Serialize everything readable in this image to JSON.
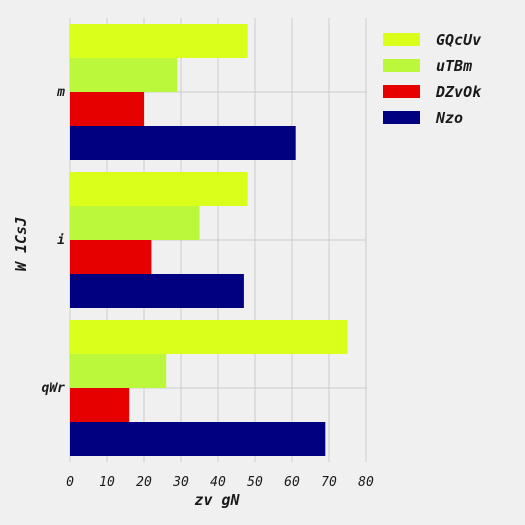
{
  "chart_data": {
    "type": "bar",
    "orientation": "horizontal",
    "categories": [
      "m",
      "i",
      "qWr"
    ],
    "series": [
      {
        "name": "GQcUv",
        "color": "#d9ff1a",
        "values": [
          48,
          48,
          75
        ]
      },
      {
        "name": "uTBm",
        "color": "#bbf73a",
        "values": [
          29,
          35,
          26
        ]
      },
      {
        "name": "DZvOk",
        "color": "#e60000",
        "values": [
          20,
          22,
          16
        ]
      },
      {
        "name": "Nzo",
        "color": "#000080",
        "values": [
          61,
          47,
          69
        ]
      }
    ],
    "xlabel": "zv gN",
    "ylabel": "W 1CsJ",
    "xlim": [
      0,
      80
    ],
    "xticks": [
      0,
      10,
      20,
      30,
      40,
      50,
      60,
      70,
      80
    ],
    "grid": true,
    "legend": "top-right"
  }
}
